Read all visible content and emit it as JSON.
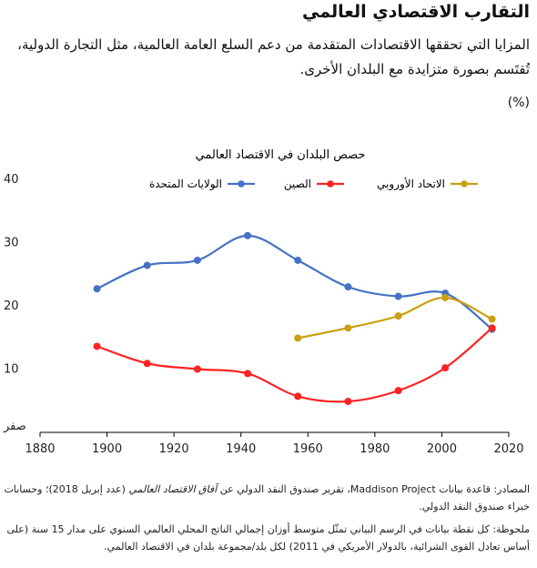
{
  "header": {
    "title": "التقارب الاقتصادي العالمي",
    "subtitle": "المزايا التي تحققها الاقتصادات المتقدمة من دعم السلع العامة العالمية، مثل التجارة الدولية، تُقتَسم بصورة متزايدة مع البلدان الأخرى.",
    "units": "(%)"
  },
  "chart_data": {
    "type": "line",
    "title": "حصص البلدان في الاقتصاد العالمي",
    "xlabel": "",
    "ylabel": "",
    "xlim": [
      1880,
      2020
    ],
    "ylim": [
      0,
      40
    ],
    "x_ticks": [
      "1880",
      "1900",
      "1920",
      "1940",
      "1960",
      "1980",
      "2000",
      "2020"
    ],
    "y_ticks": [
      "صفر",
      "10",
      "20",
      "30",
      "40"
    ],
    "grid": false,
    "legend_position": "top",
    "series": [
      {
        "name": "الولايات المتحدة",
        "color": "#4472c4",
        "x": [
          1897,
          1912,
          1927,
          1942,
          1957,
          1972,
          1987,
          2001,
          2015
        ],
        "y": [
          22.7,
          26.4,
          27.2,
          31.1,
          27.2,
          23.0,
          21.5,
          22.0,
          16.3
        ]
      },
      {
        "name": "الصين",
        "color": "#ff2222",
        "x": [
          1897,
          1912,
          1927,
          1942,
          1957,
          1972,
          1987,
          2001,
          2015
        ],
        "y": [
          13.6,
          10.9,
          10.0,
          9.3,
          5.7,
          4.9,
          6.6,
          10.2,
          16.5
        ]
      },
      {
        "name": "الاتحاد الأوروبي",
        "color": "#c9a010",
        "x": [
          1957,
          1972,
          1987,
          2001,
          2015
        ],
        "y": [
          14.9,
          16.5,
          18.4,
          21.3,
          17.9
        ]
      }
    ]
  },
  "footnotes": {
    "source_prefix": "المصادر: قاعدة بيانات ",
    "source_db": "Maddison Project",
    "source_mid": "، تقرير صندوق النقد الدولي عن ",
    "source_pub": "آفاق الاقتصاد العالمي",
    "source_suffix": " (عدد إبريل 2018)؛ وحسابات خبراء صندوق النقد الدولي.",
    "note": "ملحوظة: كل نقطة بيانات في الرسم البياني تمثّل متوسط أوزان إجمالي الناتج المحلي العالمي السنوي على مدار 15 سنة (على أساس تعادل القوى الشرائية، بالدولار الأمريكي في 2011) لكل بلد/مجموعة بلدان في الاقتصاد العالمي."
  }
}
